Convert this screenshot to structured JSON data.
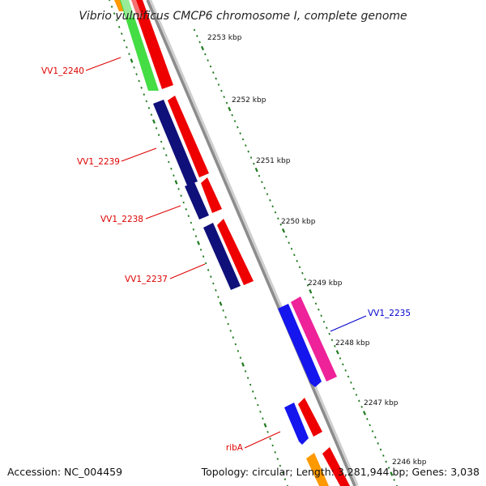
{
  "title": "Vibrio vulnificus CMCP6 chromosome I, complete genome",
  "footer": {
    "accession": "Accession: NC_004459",
    "info": "Topology: circular; Length: 3,281,944 bp; Genes: 3,038"
  },
  "colors": {
    "backbone": "#8c8c8c",
    "tick": "#1f7a1f",
    "label_red": "#dd0000",
    "label_blue": "#0000cc",
    "red": "#ee0000",
    "navy": "#10107a",
    "blue": "#1515ee",
    "green": "#44dd44",
    "magenta": "#ee2299",
    "orange": "#ff9900"
  },
  "kbp_labels": [
    "2253 kbp",
    "2252 kbp",
    "2251 kbp",
    "2250 kbp",
    "2249 kbp",
    "2248 kbp",
    "2247 kbp",
    "2246 kbp"
  ],
  "gene_labels": {
    "vv1_2240": "VV1_2240",
    "vv1_2239": "VV1_2239",
    "vv1_2238": "VV1_2238",
    "vv1_2237": "VV1_2237",
    "vv1_2235": "VV1_2235",
    "riba": "ribA"
  }
}
